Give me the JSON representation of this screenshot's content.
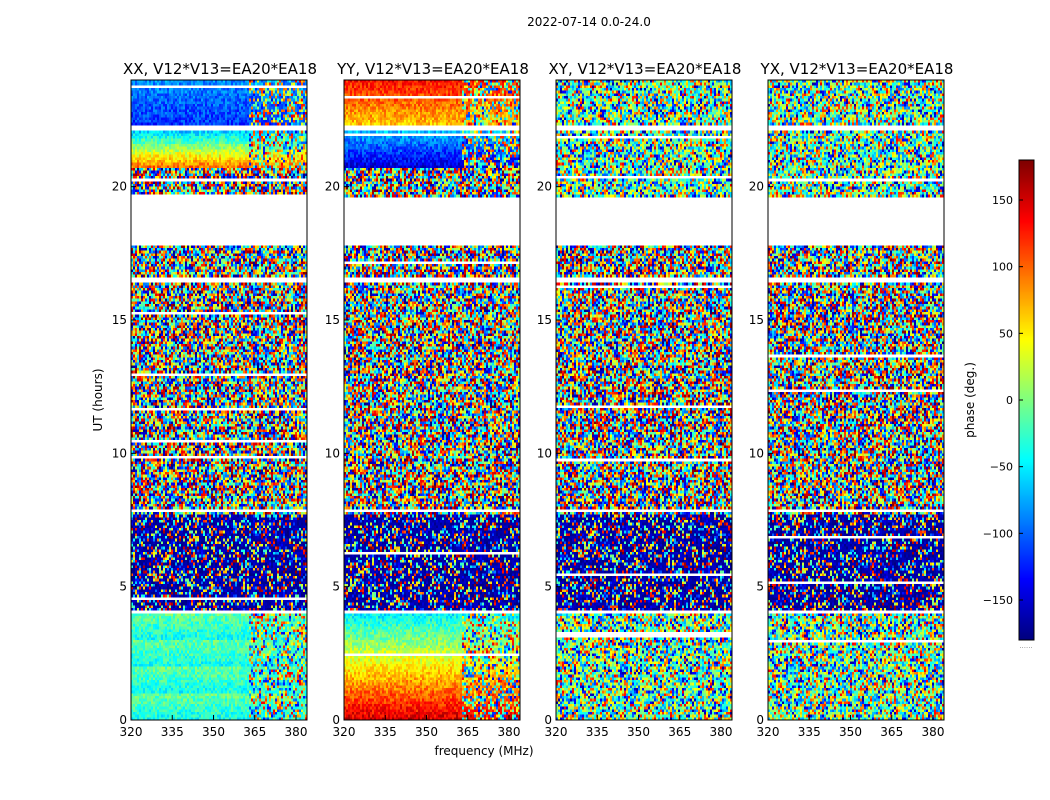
{
  "figure": {
    "title": "2022-07-14 0.0-24.0",
    "xlabel": "frequency (MHz)",
    "ylabel": "UT (hours)"
  },
  "chart_data": {
    "type": "heatmap",
    "x_ticks": [
      320,
      335,
      350,
      365,
      380
    ],
    "y_ticks": [
      0,
      5,
      10,
      15,
      20
    ],
    "xlim": [
      320,
      384
    ],
    "ylim": [
      0,
      24
    ],
    "colormap": "jet",
    "panels": [
      {
        "title": "XX, V12*V13=EA20*EA18",
        "pattern": "auto-XX"
      },
      {
        "title": "YY, V12*V13=EA20*EA18",
        "pattern": "auto-YY"
      },
      {
        "title": "XY, V12*V13=EA20*EA18",
        "pattern": "cross"
      },
      {
        "title": "YX, V12*V13=EA20*EA18",
        "pattern": "cross"
      }
    ],
    "flagged_ut_ranges": [
      [
        17.8,
        19.6
      ],
      [
        16.45,
        16.6
      ],
      [
        22.1,
        22.25
      ],
      [
        3.95,
        4.05
      ],
      [
        7.8,
        7.9
      ]
    ],
    "colorbar": {
      "label": "phase (deg.)",
      "range": [
        -180,
        180
      ],
      "ticks": [
        150,
        100,
        50,
        0,
        -50,
        -100,
        -150
      ],
      "tick_labels": [
        "150",
        "100",
        "50",
        "0",
        "−50",
        "−100",
        "−150"
      ],
      "bottom_label": "......"
    }
  }
}
